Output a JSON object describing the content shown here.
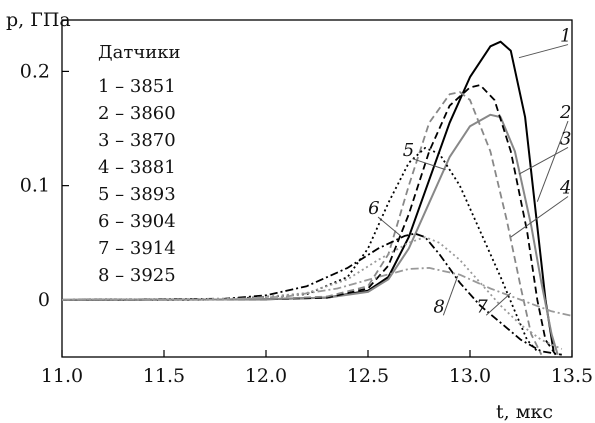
{
  "chart_data": {
    "type": "line",
    "y_axis_label": "p, ГПа",
    "x_axis_label": "t, мкс",
    "xlim": [
      11.0,
      13.5
    ],
    "ylim": [
      -0.05,
      0.245
    ],
    "x_ticks": [
      "11.0",
      "11.5",
      "12.0",
      "12.5",
      "13.0",
      "13.5"
    ],
    "y_ticks": [
      "0",
      "0.1",
      "0.2"
    ],
    "legend_title": "Датчики",
    "legend_position": "top-left",
    "series": [
      {
        "name": "1",
        "legend_text": "1 – 3851",
        "color": "#000000",
        "style": "solid",
        "points": [
          [
            11.0,
            0
          ],
          [
            12.0,
            0.0005
          ],
          [
            12.3,
            0.002
          ],
          [
            12.5,
            0.008
          ],
          [
            12.6,
            0.02
          ],
          [
            12.7,
            0.055
          ],
          [
            12.8,
            0.105
          ],
          [
            12.9,
            0.155
          ],
          [
            13.0,
            0.195
          ],
          [
            13.1,
            0.222
          ],
          [
            13.15,
            0.226
          ],
          [
            13.2,
            0.218
          ],
          [
            13.27,
            0.16
          ],
          [
            13.32,
            0.08
          ],
          [
            13.37,
            0.0
          ],
          [
            13.41,
            -0.045
          ]
        ]
      },
      {
        "name": "2",
        "legend_text": "2 – 3860",
        "color": "#888888",
        "style": "solid",
        "points": [
          [
            11.0,
            0
          ],
          [
            12.0,
            0.0005
          ],
          [
            12.3,
            0.002
          ],
          [
            12.5,
            0.007
          ],
          [
            12.6,
            0.018
          ],
          [
            12.7,
            0.045
          ],
          [
            12.8,
            0.085
          ],
          [
            12.9,
            0.125
          ],
          [
            13.0,
            0.152
          ],
          [
            13.1,
            0.162
          ],
          [
            13.15,
            0.16
          ],
          [
            13.22,
            0.13
          ],
          [
            13.3,
            0.065
          ],
          [
            13.35,
            0.015
          ],
          [
            13.4,
            -0.03
          ],
          [
            13.43,
            -0.048
          ]
        ]
      },
      {
        "name": "3",
        "legend_text": "3 – 3870",
        "color": "#000000",
        "style": "dashed",
        "points": [
          [
            11.0,
            0
          ],
          [
            12.0,
            0.0005
          ],
          [
            12.3,
            0.002
          ],
          [
            12.5,
            0.01
          ],
          [
            12.6,
            0.03
          ],
          [
            12.7,
            0.075
          ],
          [
            12.8,
            0.13
          ],
          [
            12.9,
            0.17
          ],
          [
            13.0,
            0.186
          ],
          [
            13.05,
            0.188
          ],
          [
            13.12,
            0.175
          ],
          [
            13.2,
            0.13
          ],
          [
            13.28,
            0.06
          ],
          [
            13.33,
            0.0
          ],
          [
            13.37,
            -0.035
          ],
          [
            13.42,
            -0.048
          ]
        ]
      },
      {
        "name": "4",
        "legend_text": "4 – 3881",
        "color": "#888888",
        "style": "dashed",
        "points": [
          [
            11.0,
            0
          ],
          [
            12.0,
            0.0005
          ],
          [
            12.3,
            0.003
          ],
          [
            12.5,
            0.012
          ],
          [
            12.6,
            0.04
          ],
          [
            12.7,
            0.1
          ],
          [
            12.8,
            0.155
          ],
          [
            12.9,
            0.18
          ],
          [
            12.95,
            0.182
          ],
          [
            13.0,
            0.175
          ],
          [
            13.1,
            0.13
          ],
          [
            13.18,
            0.07
          ],
          [
            13.25,
            0.01
          ],
          [
            13.3,
            -0.03
          ],
          [
            13.35,
            -0.048
          ]
        ]
      },
      {
        "name": "5",
        "legend_text": "5 – 3893",
        "color": "#000000",
        "style": "dotted",
        "points": [
          [
            11.0,
            0
          ],
          [
            11.8,
            0.0005
          ],
          [
            12.2,
            0.005
          ],
          [
            12.4,
            0.02
          ],
          [
            12.5,
            0.045
          ],
          [
            12.6,
            0.085
          ],
          [
            12.7,
            0.12
          ],
          [
            12.78,
            0.133
          ],
          [
            12.85,
            0.128
          ],
          [
            12.95,
            0.1
          ],
          [
            13.05,
            0.06
          ],
          [
            13.15,
            0.02
          ],
          [
            13.22,
            -0.01
          ],
          [
            13.28,
            -0.035
          ],
          [
            13.33,
            -0.045
          ]
        ]
      },
      {
        "name": "6",
        "legend_text": "6 – 3904",
        "color": "#000000",
        "style": "dashdot",
        "points": [
          [
            11.0,
            0
          ],
          [
            11.8,
            0.001
          ],
          [
            12.0,
            0.004
          ],
          [
            12.2,
            0.012
          ],
          [
            12.4,
            0.028
          ],
          [
            12.55,
            0.045
          ],
          [
            12.68,
            0.056
          ],
          [
            12.73,
            0.058
          ],
          [
            12.78,
            0.055
          ],
          [
            12.85,
            0.04
          ],
          [
            12.95,
            0.015
          ],
          [
            13.05,
            -0.005
          ],
          [
            13.15,
            -0.02
          ],
          [
            13.25,
            -0.035
          ],
          [
            13.35,
            -0.045
          ],
          [
            13.45,
            -0.048
          ]
        ]
      },
      {
        "name": "7",
        "legend_text": "7 – 3914",
        "color": "#999999",
        "style": "dashdot",
        "points": [
          [
            11.0,
            0
          ],
          [
            11.8,
            0.0005
          ],
          [
            12.1,
            0.003
          ],
          [
            12.35,
            0.01
          ],
          [
            12.55,
            0.02
          ],
          [
            12.7,
            0.027
          ],
          [
            12.8,
            0.028
          ],
          [
            12.95,
            0.022
          ],
          [
            13.1,
            0.01
          ],
          [
            13.25,
            0.0
          ],
          [
            13.4,
            -0.01
          ],
          [
            13.5,
            -0.014
          ]
        ]
      },
      {
        "name": "8",
        "legend_text": "8 – 3925",
        "color": "#999999",
        "style": "dotted",
        "points": [
          [
            11.0,
            0
          ],
          [
            11.9,
            0.001
          ],
          [
            12.2,
            0.006
          ],
          [
            12.4,
            0.018
          ],
          [
            12.55,
            0.035
          ],
          [
            12.7,
            0.05
          ],
          [
            12.78,
            0.055
          ],
          [
            12.85,
            0.05
          ],
          [
            12.95,
            0.035
          ],
          [
            13.05,
            0.015
          ],
          [
            13.15,
            -0.005
          ],
          [
            13.25,
            -0.022
          ],
          [
            13.35,
            -0.035
          ],
          [
            13.45,
            -0.043
          ]
        ]
      }
    ],
    "curve_labels": [
      {
        "text": "1",
        "x": 13.5,
        "y": 0.227,
        "ax": 13.24,
        "ay": 0.212
      },
      {
        "text": "2",
        "x": 13.5,
        "y": 0.16,
        "ax": 13.33,
        "ay": 0.086
      },
      {
        "text": "3",
        "x": 13.5,
        "y": 0.137,
        "ax": 13.24,
        "ay": 0.11
      },
      {
        "text": "4",
        "x": 13.5,
        "y": 0.094,
        "ax": 13.2,
        "ay": 0.055
      },
      {
        "text": "5",
        "x": 12.69,
        "y": 0.127,
        "ax": 12.88,
        "ay": 0.114
      },
      {
        "text": "6",
        "x": 12.52,
        "y": 0.076,
        "ax": 12.66,
        "ay": 0.056
      },
      {
        "text": "7",
        "x": 13.05,
        "y": -0.01,
        "ax": 13.2,
        "ay": 0.006
      },
      {
        "text": "8",
        "x": 12.84,
        "y": -0.01,
        "ax": 12.94,
        "ay": 0.021
      }
    ]
  }
}
